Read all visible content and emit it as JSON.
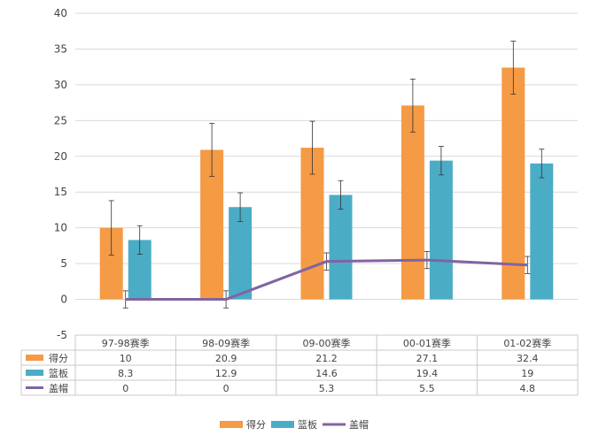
{
  "chart_data": {
    "type": "bar",
    "title": "",
    "xlabel": "",
    "ylabel": "",
    "ylim": [
      -5,
      40
    ],
    "yticks": [
      -5,
      0,
      5,
      10,
      15,
      20,
      25,
      30,
      35,
      40
    ],
    "grid": true,
    "legend_position": "bottom-center",
    "categories": [
      "97-98赛季",
      "98-09赛季",
      "09-00赛季",
      "00-01赛季",
      "01-02赛季"
    ],
    "series": [
      {
        "name": "得分",
        "kind": "bar",
        "color": "#f59a45",
        "values": [
          10,
          20.9,
          21.2,
          27.1,
          32.4
        ],
        "error": [
          3.8,
          3.7,
          3.7,
          3.7,
          3.7
        ]
      },
      {
        "name": "篮板",
        "kind": "bar",
        "color": "#4bacc6",
        "values": [
          8.3,
          12.9,
          14.6,
          19.4,
          19
        ],
        "error": [
          2.0,
          2.0,
          2.0,
          2.0,
          2.0
        ]
      },
      {
        "name": "盖帽",
        "kind": "line",
        "color": "#8064a2",
        "values": [
          0,
          0,
          5.3,
          5.5,
          4.8
        ],
        "error": [
          1.2,
          1.2,
          1.2,
          1.2,
          1.2
        ]
      }
    ],
    "data_table": true
  }
}
